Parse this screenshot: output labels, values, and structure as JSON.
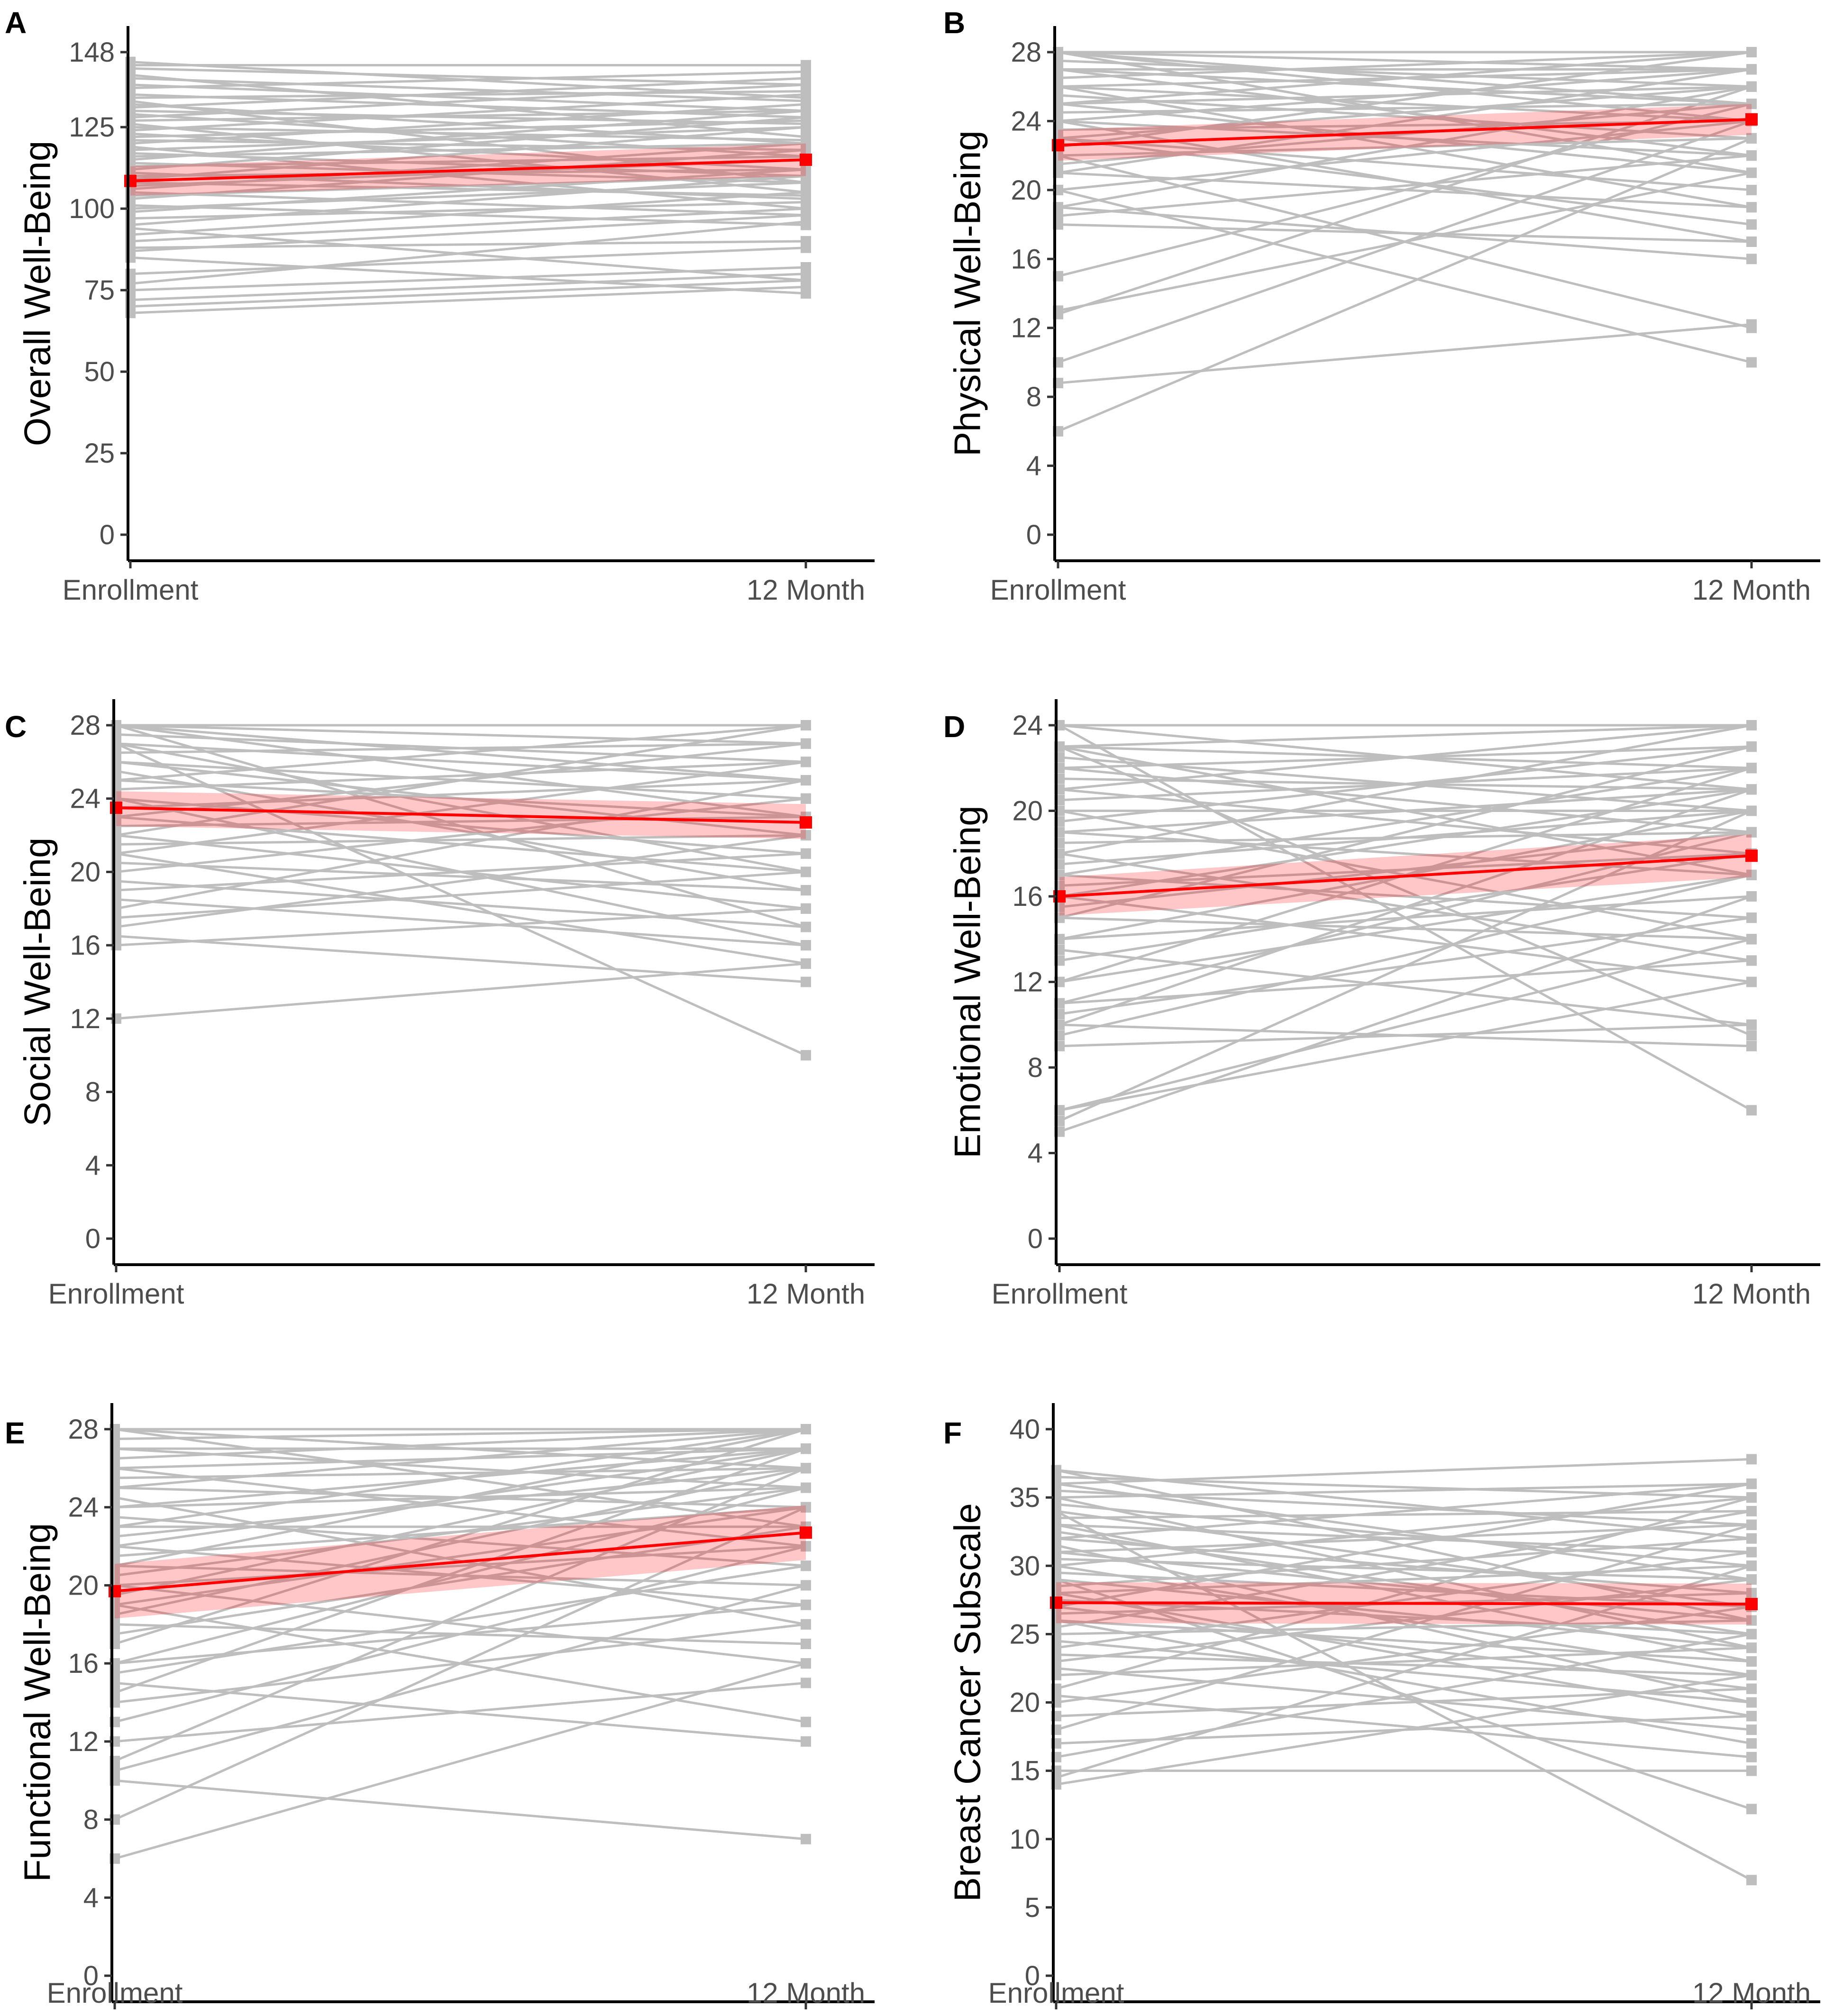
{
  "colors": {
    "individual": "#bebebe",
    "mean": "#ff0000",
    "band": "#ff0000",
    "axis": "#000000",
    "tick_text": "#4d4d4d"
  },
  "chart_data": [
    {
      "panel": "A",
      "type": "line",
      "ylabel": "Overall Well-Being",
      "categories": [
        "Enrollment",
        "12 Month"
      ],
      "ylim": [
        0,
        148
      ],
      "yticks": [
        0,
        25,
        50,
        75,
        100,
        125,
        148
      ],
      "mean": [
        108.5,
        115
      ],
      "ci_lower": [
        104,
        110
      ],
      "ci_upper": [
        113,
        120
      ],
      "individual": [
        [
          68,
          76
        ],
        [
          70,
          78
        ],
        [
          72,
          80
        ],
        [
          75,
          82
        ],
        [
          77,
          96
        ],
        [
          80,
          88
        ],
        [
          85,
          74
        ],
        [
          87,
          98
        ],
        [
          88,
          90
        ],
        [
          90,
          100
        ],
        [
          92,
          105
        ],
        [
          94,
          78
        ],
        [
          95,
          110
        ],
        [
          97,
          102
        ],
        [
          99,
          112
        ],
        [
          100,
          108
        ],
        [
          101,
          95
        ],
        [
          103,
          118
        ],
        [
          104,
          110
        ],
        [
          105,
          98
        ],
        [
          106,
          120
        ],
        [
          107,
          115
        ],
        [
          108,
          104
        ],
        [
          109,
          125
        ],
        [
          110,
          112
        ],
        [
          111,
          103
        ],
        [
          112,
          128
        ],
        [
          113,
          116
        ],
        [
          114,
          108
        ],
        [
          115,
          130
        ],
        [
          116,
          120
        ],
        [
          117,
          110
        ],
        [
          118,
          125
        ],
        [
          119,
          100
        ],
        [
          120,
          132
        ],
        [
          121,
          118
        ],
        [
          122,
          127
        ],
        [
          123,
          112
        ],
        [
          124,
          135
        ],
        [
          125,
          121
        ],
        [
          126,
          105
        ],
        [
          127,
          130
        ],
        [
          128,
          138
        ],
        [
          129,
          116
        ],
        [
          130,
          126
        ],
        [
          131,
          140
        ],
        [
          132,
          120
        ],
        [
          133,
          108
        ],
        [
          134,
          136
        ],
        [
          135,
          128
        ],
        [
          137,
          142
        ],
        [
          138,
          130
        ],
        [
          140,
          133
        ],
        [
          141,
          122
        ],
        [
          143,
          138
        ],
        [
          144,
          144
        ],
        [
          145,
          134
        ]
      ]
    },
    {
      "panel": "B",
      "type": "line",
      "ylabel": "Physical Well-Being",
      "categories": [
        "Enrollment",
        "12 Month"
      ],
      "ylim": [
        0,
        28
      ],
      "yticks": [
        0,
        4,
        8,
        12,
        16,
        20,
        24,
        28
      ],
      "mean": [
        22.6,
        24.1
      ],
      "ci_lower": [
        21.7,
        23.2
      ],
      "ci_upper": [
        23.5,
        25
      ],
      "individual": [
        [
          6,
          23
        ],
        [
          8.8,
          12.2
        ],
        [
          10,
          24
        ],
        [
          12.8,
          26
        ],
        [
          13,
          21
        ],
        [
          15,
          25
        ],
        [
          18,
          17
        ],
        [
          18.5,
          22
        ],
        [
          19,
          26
        ],
        [
          19,
          16
        ],
        [
          20,
          24
        ],
        [
          20,
          10
        ],
        [
          21,
          27
        ],
        [
          21,
          19
        ],
        [
          21.5,
          25
        ],
        [
          22,
          12
        ],
        [
          22,
          23
        ],
        [
          22.5,
          28
        ],
        [
          23,
          20
        ],
        [
          23,
          26
        ],
        [
          23,
          18
        ],
        [
          23.5,
          24
        ],
        [
          24,
          27
        ],
        [
          24,
          22
        ],
        [
          24,
          17
        ],
        [
          24.5,
          25
        ],
        [
          25,
          28
        ],
        [
          25,
          21
        ],
        [
          25,
          26
        ],
        [
          25.5,
          23
        ],
        [
          26,
          27
        ],
        [
          26,
          24
        ],
        [
          26,
          19
        ],
        [
          26.5,
          28
        ],
        [
          27,
          25
        ],
        [
          27,
          22
        ],
        [
          27,
          27
        ],
        [
          27.5,
          26
        ],
        [
          28,
          28
        ],
        [
          28,
          24
        ],
        [
          28,
          21
        ],
        [
          28,
          27
        ],
        [
          28,
          25
        ]
      ]
    },
    {
      "panel": "C",
      "type": "line",
      "ylabel": "Social Well-Being",
      "categories": [
        "Enrollment",
        "12 Month"
      ],
      "ylim": [
        0,
        28
      ],
      "yticks": [
        0,
        4,
        8,
        12,
        16,
        20,
        24,
        28
      ],
      "mean": [
        23.5,
        22.7
      ],
      "ci_lower": [
        22.5,
        21.8
      ],
      "ci_upper": [
        24.4,
        23.7
      ],
      "individual": [
        [
          12,
          15
        ],
        [
          16,
          18
        ],
        [
          16.5,
          14
        ],
        [
          17,
          22
        ],
        [
          17.5,
          20
        ],
        [
          18,
          25
        ],
        [
          18.5,
          16
        ],
        [
          19,
          21
        ],
        [
          19.5,
          17
        ],
        [
          20,
          24
        ],
        [
          20.5,
          19
        ],
        [
          21,
          26
        ],
        [
          21,
          15
        ],
        [
          21.5,
          22
        ],
        [
          22,
          28
        ],
        [
          22,
          18
        ],
        [
          22.5,
          23
        ],
        [
          23,
          20
        ],
        [
          23,
          27
        ],
        [
          23.5,
          25
        ],
        [
          24,
          21
        ],
        [
          24,
          16
        ],
        [
          24.5,
          26
        ],
        [
          25,
          23
        ],
        [
          25,
          28
        ],
        [
          25.5,
          19
        ],
        [
          26,
          24
        ],
        [
          26,
          22
        ],
        [
          26.5,
          27
        ],
        [
          27,
          25
        ],
        [
          27,
          20
        ],
        [
          27,
          10
        ],
        [
          27.5,
          26
        ],
        [
          28,
          28
        ],
        [
          28,
          23
        ],
        [
          28,
          17
        ],
        [
          28,
          25
        ],
        [
          28,
          27
        ]
      ]
    },
    {
      "panel": "D",
      "type": "line",
      "ylabel": "Emotional Well-Being",
      "categories": [
        "Enrollment",
        "12 Month"
      ],
      "ylim": [
        0,
        24
      ],
      "yticks": [
        0,
        4,
        8,
        12,
        16,
        20,
        24
      ],
      "mean": [
        16,
        17.9
      ],
      "ci_lower": [
        15.1,
        16.9
      ],
      "ci_upper": [
        16.9,
        18.9
      ],
      "individual": [
        [
          5,
          16
        ],
        [
          5.5,
          20
        ],
        [
          6,
          14
        ],
        [
          6,
          12
        ],
        [
          9,
          10
        ],
        [
          9.5,
          17
        ],
        [
          10,
          21
        ],
        [
          10,
          9
        ],
        [
          10.5,
          15
        ],
        [
          11,
          19
        ],
        [
          11,
          13
        ],
        [
          12,
          22
        ],
        [
          12,
          17
        ],
        [
          13,
          18
        ],
        [
          13.5,
          10
        ],
        [
          14,
          20
        ],
        [
          14,
          16
        ],
        [
          15,
          23
        ],
        [
          15,
          14
        ],
        [
          15.5,
          19
        ],
        [
          16,
          21
        ],
        [
          16,
          12
        ],
        [
          16.5,
          18
        ],
        [
          17,
          22
        ],
        [
          17,
          15
        ],
        [
          17.5,
          20
        ],
        [
          18,
          24
        ],
        [
          18,
          13
        ],
        [
          18.5,
          19
        ],
        [
          19,
          21
        ],
        [
          19,
          17
        ],
        [
          19.5,
          23
        ],
        [
          20,
          20
        ],
        [
          20,
          14
        ],
        [
          20.5,
          22
        ],
        [
          21,
          18
        ],
        [
          21,
          24
        ],
        [
          21.5,
          21
        ],
        [
          22,
          19
        ],
        [
          22,
          23
        ],
        [
          22.5,
          20
        ],
        [
          23,
          22
        ],
        [
          23,
          17
        ],
        [
          23,
          24
        ],
        [
          24,
          24
        ],
        [
          24,
          21
        ],
        [
          24,
          6
        ],
        [
          23,
          9.5
        ]
      ]
    },
    {
      "panel": "E",
      "type": "line",
      "ylabel": "Functional Well-Being",
      "categories": [
        "Enrollment",
        "12 Month"
      ],
      "ylim": [
        0,
        28
      ],
      "yticks": [
        0,
        4,
        8,
        12,
        16,
        20,
        24,
        28
      ],
      "mean": [
        19.7,
        22.7
      ],
      "ci_lower": [
        18.3,
        21.3
      ],
      "ci_upper": [
        21.1,
        24.1
      ],
      "individual": [
        [
          6,
          16
        ],
        [
          8,
          24
        ],
        [
          10,
          7
        ],
        [
          10.5,
          20
        ],
        [
          11,
          26
        ],
        [
          12,
          15
        ],
        [
          13,
          22
        ],
        [
          14,
          18
        ],
        [
          14.5,
          27
        ],
        [
          15,
          12
        ],
        [
          15.5,
          21
        ],
        [
          16,
          25
        ],
        [
          16,
          19
        ],
        [
          17,
          28
        ],
        [
          17.5,
          23
        ],
        [
          18,
          17
        ],
        [
          18.5,
          26
        ],
        [
          19,
          24
        ],
        [
          19,
          13
        ],
        [
          19.5,
          27
        ],
        [
          20,
          22
        ],
        [
          20,
          16
        ],
        [
          20.5,
          25
        ],
        [
          21,
          28
        ],
        [
          21,
          20
        ],
        [
          21.5,
          24
        ],
        [
          22,
          27
        ],
        [
          22,
          19
        ],
        [
          22.5,
          26
        ],
        [
          23,
          23
        ],
        [
          23,
          28
        ],
        [
          23.5,
          21
        ],
        [
          24,
          27
        ],
        [
          24,
          25
        ],
        [
          24.5,
          18
        ],
        [
          25,
          28
        ],
        [
          25,
          24
        ],
        [
          25.5,
          26
        ],
        [
          26,
          27
        ],
        [
          26,
          22
        ],
        [
          26.5,
          28
        ],
        [
          27,
          25
        ],
        [
          27,
          27
        ],
        [
          27.5,
          28
        ],
        [
          28,
          28
        ],
        [
          28,
          26
        ],
        [
          28,
          23
        ]
      ]
    },
    {
      "panel": "F",
      "type": "line",
      "ylabel": "Breast Cancer Subscale",
      "categories": [
        "Enrollment",
        "12 Month"
      ],
      "ylim": [
        0,
        40
      ],
      "yticks": [
        0,
        5,
        10,
        15,
        20,
        25,
        30,
        35,
        40
      ],
      "mean": [
        27.3,
        27.2
      ],
      "ci_lower": [
        25.8,
        25.7
      ],
      "ci_upper": [
        28.8,
        28.7
      ],
      "individual": [
        [
          14,
          22
        ],
        [
          14.5,
          30
        ],
        [
          15,
          15
        ],
        [
          16,
          25
        ],
        [
          17,
          19
        ],
        [
          18,
          33
        ],
        [
          19,
          21
        ],
        [
          20,
          27
        ],
        [
          20.5,
          16
        ],
        [
          21,
          35
        ],
        [
          22,
          24
        ],
        [
          22.5,
          18
        ],
        [
          23,
          29
        ],
        [
          23.5,
          22
        ],
        [
          24,
          31
        ],
        [
          24.5,
          20
        ],
        [
          25,
          26
        ],
        [
          25.5,
          34
        ],
        [
          26,
          23
        ],
        [
          26,
          17
        ],
        [
          26.5,
          28
        ],
        [
          27,
          36
        ],
        [
          27,
          21
        ],
        [
          27.5,
          25
        ],
        [
          28,
          30
        ],
        [
          28,
          19
        ],
        [
          28.5,
          32
        ],
        [
          29,
          24
        ],
        [
          29,
          12.2
        ],
        [
          29.5,
          27
        ],
        [
          30,
          35
        ],
        [
          30,
          22
        ],
        [
          30.5,
          29
        ],
        [
          31,
          26
        ],
        [
          31,
          33
        ],
        [
          31.5,
          20
        ],
        [
          32,
          28
        ],
        [
          32,
          36
        ],
        [
          32.5,
          25
        ],
        [
          33,
          31
        ],
        [
          33,
          23
        ],
        [
          33.5,
          34
        ],
        [
          34,
          27
        ],
        [
          34,
          7
        ],
        [
          34.5,
          30
        ],
        [
          35,
          36
        ],
        [
          35,
          24
        ],
        [
          35.5,
          33
        ],
        [
          36,
          29
        ],
        [
          36,
          37.8
        ],
        [
          36.5,
          35
        ],
        [
          37,
          32
        ],
        [
          37,
          26
        ]
      ]
    }
  ]
}
